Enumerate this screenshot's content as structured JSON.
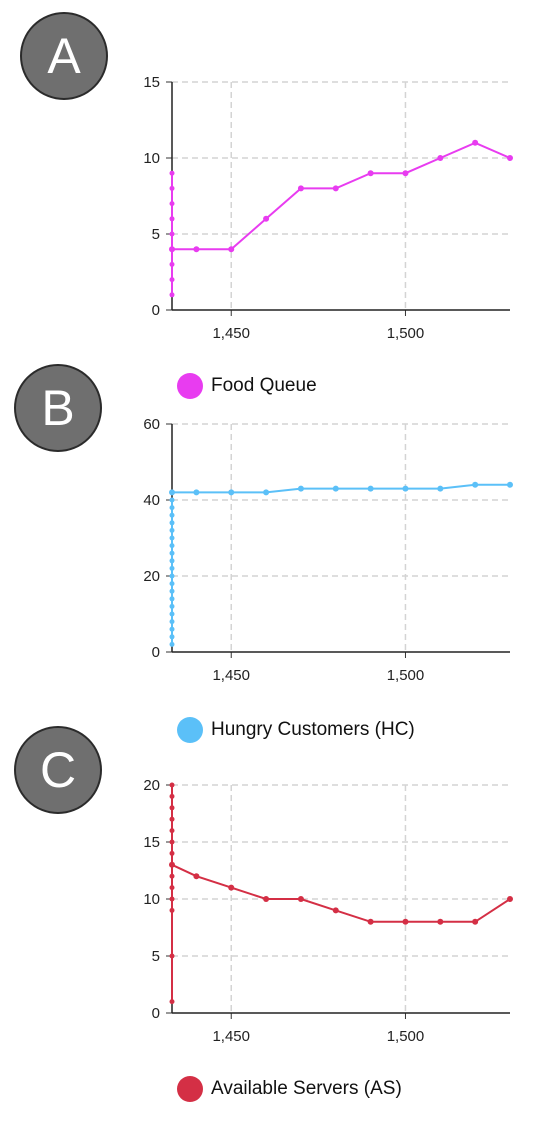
{
  "badges": [
    "A",
    "B",
    "C"
  ],
  "chart_data": [
    {
      "type": "line",
      "color": "#e83cf0",
      "legend": "Food Queue",
      "xlim": [
        1433,
        1530
      ],
      "ylim": [
        0,
        15
      ],
      "xticks": [
        1450,
        1500
      ],
      "xtick_labels": [
        "1,450",
        "1,500"
      ],
      "yticks": [
        0,
        5,
        10,
        15
      ],
      "ytick_labels": [
        "0",
        "5",
        "10",
        "15"
      ],
      "grid": true,
      "legend_position": "below",
      "vertical_points": [
        1,
        2,
        3,
        4,
        5,
        6,
        7,
        8,
        9
      ],
      "x": [
        1433,
        1440,
        1450,
        1460,
        1470,
        1480,
        1490,
        1500,
        1510,
        1520,
        1530
      ],
      "y": [
        4,
        4,
        4,
        6,
        8,
        8,
        9,
        9,
        10,
        11,
        10
      ]
    },
    {
      "type": "line",
      "color": "#5bc0f8",
      "legend": "Hungry Customers (HC)",
      "xlim": [
        1433,
        1530
      ],
      "ylim": [
        0,
        60
      ],
      "xticks": [
        1450,
        1500
      ],
      "xtick_labels": [
        "1,450",
        "1,500"
      ],
      "yticks": [
        0,
        20,
        40,
        60
      ],
      "ytick_labels": [
        "0",
        "20",
        "40",
        "60"
      ],
      "grid": true,
      "legend_position": "below",
      "vertical_points": [
        2,
        4,
        6,
        8,
        10,
        12,
        14,
        16,
        18,
        20,
        22,
        24,
        26,
        28,
        30,
        32,
        34,
        36,
        38,
        40
      ],
      "x": [
        1433,
        1440,
        1450,
        1460,
        1470,
        1480,
        1490,
        1500,
        1510,
        1520,
        1530
      ],
      "y": [
        42,
        42,
        42,
        42,
        43,
        43,
        43,
        43,
        43,
        44,
        44
      ]
    },
    {
      "type": "line",
      "color": "#d42f45",
      "legend": "Available Servers (AS)",
      "xlim": [
        1433,
        1530
      ],
      "ylim": [
        0,
        20
      ],
      "xticks": [
        1450,
        1500
      ],
      "xtick_labels": [
        "1,450",
        "1,500"
      ],
      "yticks": [
        0,
        5,
        10,
        15,
        20
      ],
      "ytick_labels": [
        "0",
        "5",
        "10",
        "15",
        "20"
      ],
      "grid": true,
      "legend_position": "below",
      "vertical_points": [
        1,
        5,
        9,
        10,
        11,
        12,
        14,
        15,
        16,
        17,
        18,
        19,
        20
      ],
      "x": [
        1433,
        1440,
        1450,
        1460,
        1470,
        1480,
        1490,
        1500,
        1510,
        1520,
        1530
      ],
      "y": [
        13,
        12,
        11,
        10,
        10,
        9,
        8,
        8,
        8,
        8,
        10
      ]
    }
  ]
}
